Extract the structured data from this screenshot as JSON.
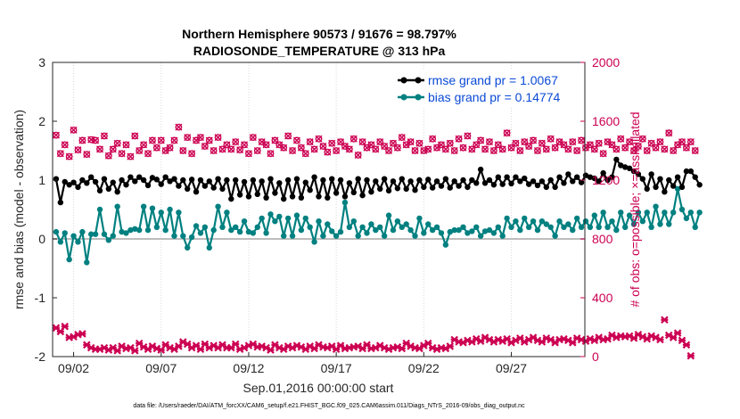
{
  "chart_data": {
    "type": "line",
    "title": "Northern Hemisphere 90573 / 91676 = 98.797%",
    "subtitle": "RADIOSONDE_TEMPERATURE @ 313 hPa",
    "xlabel": "Sep.01,2016 00:00:00 start",
    "ylabel": "rmse and bias (model - observation)",
    "y2label": "# of obs: o=possible; ×=assimilated",
    "x_tick_labels": [
      "09/02",
      "09/07",
      "09/12",
      "09/17",
      "09/22",
      "09/27"
    ],
    "x_ticks": [
      2,
      7,
      12,
      17,
      22,
      27
    ],
    "xlim": [
      0.8,
      31.2
    ],
    "y_tick_labels": [
      "3",
      "2",
      "1",
      "0",
      "-1",
      "-2"
    ],
    "y_ticks": [
      3,
      2,
      1,
      0,
      -1,
      -2
    ],
    "ylim": [
      -2,
      3
    ],
    "y2_tick_labels": [
      "2000",
      "1600",
      "1200",
      "800",
      "400",
      "0"
    ],
    "y2_ticks": [
      2000,
      1600,
      1200,
      800,
      400,
      0
    ],
    "y2lim": [
      0,
      2000
    ],
    "zero_line": 0,
    "footer": "data file: /Users/raeder/DAI/ATM_forcXX/CAM6_setup/f.e21.FHIST_BGC.f09_025.CAM6assim.011/Diags_NTrS_2016-09/obs_diag_output.nc",
    "x_start": 1.0,
    "x_step": 0.25,
    "legend": [
      {
        "label": "rmse grand pr = 1.0067",
        "color": "#000000"
      },
      {
        "label": "bias grand pr = 0.14774",
        "color": "#008080"
      }
    ],
    "series": [
      {
        "name": "rmse",
        "color": "#000000",
        "values": [
          1.02,
          0.62,
          0.97,
          0.92,
          0.96,
          0.88,
          1.0,
          0.95,
          1.05,
          0.97,
          0.82,
          1.02,
          0.85,
          0.96,
          0.8,
          1.0,
          0.92,
          1.05,
          0.98,
          1.05,
          1.0,
          0.91,
          1.04,
          1.01,
          0.93,
          1.05,
          0.98,
          1.02,
          0.9,
          1.0,
          0.85,
          1.01,
          0.8,
          1.0,
          0.9,
          0.98,
          0.87,
          1.02,
          0.85,
          1.0,
          0.68,
          1.0,
          0.75,
          0.97,
          0.72,
          1.0,
          0.76,
          0.98,
          0.7,
          1.02,
          0.78,
          0.95,
          0.68,
          1.0,
          0.72,
          1.02,
          0.7,
          0.96,
          0.83,
          1.05,
          0.72,
          1.0,
          0.7,
          1.02,
          0.78,
          1.0,
          0.72,
          0.95,
          0.79,
          1.02,
          0.74,
          1.0,
          0.8,
          0.98,
          0.85,
          1.02,
          0.82,
          0.98,
          0.86,
          1.02,
          0.85,
          0.98,
          0.83,
          1.0,
          0.88,
          1.01,
          0.87,
          0.98,
          0.9,
          1.02,
          0.87,
          0.98,
          0.9,
          1.0,
          0.88,
          1.0,
          0.95,
          1.18,
          0.95,
          1.0,
          0.92,
          1.05,
          0.93,
          1.05,
          0.94,
          1.05,
          0.98,
          1.03,
          0.93,
          0.98,
          0.91,
          0.98,
          0.88,
          1.0,
          0.88,
          1.05,
          0.95,
          1.1,
          0.98,
          1.05,
          0.96,
          1.08,
          1.05,
          1.03,
          0.98,
          1.12,
          1.0,
          1.05,
          1.35,
          1.25,
          1.22,
          1.2,
          1.15,
          1.1,
          1.02,
          0.85,
          1.1,
          0.88,
          1.02,
          0.8,
          1.0,
          0.9,
          1.05,
          0.88,
          1.15,
          1.15,
          1.05,
          0.92
        ]
      },
      {
        "name": "bias",
        "color": "#008080",
        "values": [
          0.12,
          -0.05,
          0.1,
          -0.35,
          0.05,
          -0.05,
          0.12,
          -0.4,
          0.08,
          0.08,
          0.5,
          0.08,
          -0.02,
          0.05,
          0.55,
          0.12,
          0.1,
          0.15,
          0.17,
          0.15,
          0.55,
          0.15,
          0.52,
          0.2,
          0.45,
          0.15,
          0.5,
          0.05,
          0.45,
          0.05,
          -0.15,
          0.03,
          0.22,
          0.1,
          0.2,
          -0.15,
          0.15,
          0.55,
          0.2,
          0.45,
          0.15,
          0.2,
          0.12,
          0.3,
          0.12,
          0.1,
          0.2,
          0.35,
          0.1,
          0.42,
          0.3,
          0.38,
          0.05,
          0.35,
          0.05,
          0.4,
          0.15,
          0.35,
          0.2,
          -0.05,
          0.3,
          0.05,
          0.25,
          0.13,
          0.05,
          0.12,
          0.62,
          0.2,
          0.3,
          0.05,
          0.2,
          0.1,
          0.25,
          0.15,
          0.2,
          0.05,
          0.4,
          0.15,
          0.3,
          0.2,
          0.25,
          0.15,
          0.05,
          0.35,
          0.1,
          0.25,
          0.15,
          0.2,
          0.1,
          -0.1,
          0.12,
          0.15,
          0.15,
          0.2,
          0.1,
          0.13,
          0.2,
          0.05,
          0.13,
          0.15,
          0.1,
          0.2,
          0.05,
          0.35,
          0.2,
          0.3,
          0.15,
          0.35,
          0.2,
          0.3,
          0.15,
          0.3,
          0.25,
          0.2,
          0.05,
          0.3,
          0.2,
          0.25,
          0.15,
          0.35,
          0.2,
          0.3,
          0.2,
          0.4,
          0.2,
          0.45,
          0.2,
          0.3,
          0.15,
          0.45,
          0.2,
          0.4,
          0.25,
          0.45,
          0.3,
          0.45,
          0.2,
          0.55,
          0.25,
          0.45,
          0.25,
          0.45,
          0.85,
          0.5,
          0.35,
          0.45,
          0.2,
          0.45
        ]
      }
    ],
    "obs_possible": {
      "color": "#cc0052",
      "marker": "circle",
      "values": [
        1505,
        1380,
        1440,
        1360,
        1540,
        1405,
        1470,
        1375,
        1475,
        1470,
        1410,
        1500,
        1365,
        1410,
        1450,
        1380,
        1440,
        1360,
        1500,
        1400,
        1440,
        1380,
        1470,
        1420,
        1470,
        1400,
        1420,
        1470,
        1560,
        1400,
        1490,
        1380,
        1470,
        1490,
        1430,
        1470,
        1400,
        1490,
        1410,
        1440,
        1410,
        1460,
        1405,
        1440,
        1380,
        1490,
        1400,
        1460,
        1440,
        1380,
        1470,
        1440,
        1420,
        1500,
        1400,
        1470,
        1420,
        1380,
        1460,
        1410,
        1480,
        1430,
        1390,
        1450,
        1400,
        1460,
        1430,
        1410,
        1480,
        1370,
        1460,
        1420,
        1440,
        1410,
        1460,
        1430,
        1400,
        1450,
        1420,
        1490,
        1440,
        1460,
        1400,
        1450,
        1400,
        1410,
        1480,
        1420,
        1440,
        1410,
        1450,
        1400,
        1480,
        1420,
        1500,
        1410,
        1440,
        1470,
        1410,
        1460,
        1400,
        1440,
        1410,
        1520,
        1420,
        1450,
        1400,
        1460,
        1430,
        1470,
        1400,
        1450,
        1410,
        1480,
        1420,
        1460,
        1440,
        1410,
        1460,
        1400,
        1470,
        1420,
        1440,
        1410,
        1450,
        1380,
        1460,
        1440,
        1410,
        1480,
        1420,
        1460,
        1400,
        1430,
        1480,
        1400,
        1450,
        1420,
        1460,
        1410,
        1520,
        1400,
        1440,
        1460,
        1420,
        1460,
        1400
      ]
    },
    "obs_assimilated": {
      "color": "#cc0052",
      "marker": "x",
      "values": [
        195,
        170,
        205,
        130,
        135,
        150,
        155,
        80,
        60,
        50,
        50,
        60,
        45,
        60,
        40,
        70,
        55,
        60,
        40,
        90,
        65,
        50,
        70,
        55,
        45,
        80,
        60,
        50,
        70,
        100,
        85,
        60,
        75,
        50,
        85,
        60,
        75,
        60,
        80,
        60,
        60,
        85,
        50,
        60,
        75,
        85,
        65,
        70,
        60,
        45,
        80,
        60,
        50,
        70,
        60,
        75,
        65,
        50,
        70,
        55,
        80,
        65,
        60,
        70,
        50,
        75,
        55,
        60,
        65,
        70,
        55,
        80,
        55,
        60,
        75,
        60,
        50,
        60,
        65,
        55,
        90,
        70,
        60,
        55,
        75,
        90,
        60,
        50,
        60,
        55,
        70,
        115,
        100,
        95,
        110,
        100,
        120,
        105,
        130,
        115,
        100,
        115,
        105,
        120,
        95,
        110,
        125,
        100,
        115,
        130,
        110,
        100,
        125,
        115,
        95,
        115,
        120,
        110,
        95,
        125,
        115,
        105,
        120,
        110,
        130,
        115,
        120,
        145,
        130,
        140,
        135,
        140,
        125,
        150,
        135,
        120,
        140,
        130,
        115,
        250,
        145,
        130,
        160,
        110,
        80,
        5
      ]
    }
  }
}
